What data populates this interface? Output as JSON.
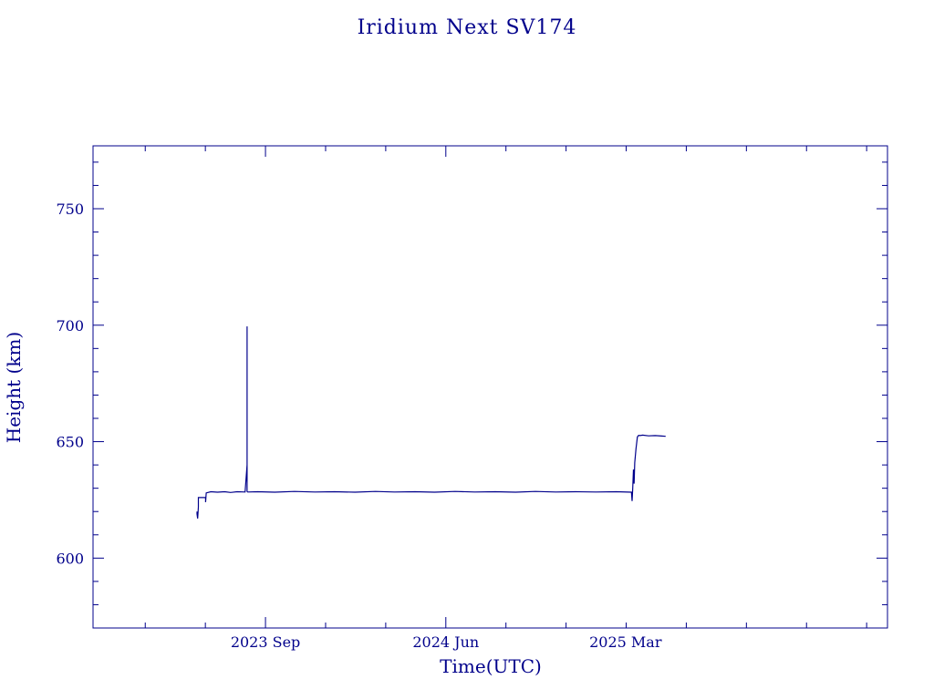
{
  "chart_data": {
    "type": "line",
    "title": "Iridium Next SV174",
    "xlabel": "Time(UTC)",
    "ylabel": "Height (km)",
    "ylim": [
      570,
      777
    ],
    "xlim": [
      "2022-12-13",
      "2026-04-03"
    ],
    "grid": false,
    "color": "#00008b",
    "y_ticks": [
      600,
      650,
      700,
      750
    ],
    "y_tick_labels": [
      "600",
      "650",
      "700",
      "750"
    ],
    "x_ticks": [
      "2023-09-01",
      "2024-06-01",
      "2025-03-01"
    ],
    "x_tick_labels": [
      "2023 Sep",
      "2024 Jun",
      "2025 Mar"
    ],
    "series": [
      {
        "x": [
          "2023-05-20",
          "2023-05-20",
          "2023-05-21",
          "2023-05-22",
          "2023-05-22",
          "2023-05-26",
          "2023-05-31",
          "2023-06-02",
          "2023-06-02",
          "2023-06-03",
          "2023-06-10",
          "2023-06-20",
          "2023-07-01",
          "2023-07-10",
          "2023-07-20",
          "2023-08-01",
          "2023-08-04",
          "2023-08-04",
          "2023-08-04",
          "2023-08-05",
          "2023-08-20",
          "2023-09-15",
          "2023-10-15",
          "2023-11-15",
          "2023-12-15",
          "2024-01-15",
          "2024-02-15",
          "2024-03-15",
          "2024-04-15",
          "2024-05-15",
          "2024-06-15",
          "2024-07-15",
          "2024-08-15",
          "2024-09-15",
          "2024-10-15",
          "2024-11-15",
          "2024-12-15",
          "2025-01-15",
          "2025-02-15",
          "2025-03-10",
          "2025-03-11",
          "2025-03-12",
          "2025-03-13",
          "2025-03-14",
          "2025-03-15",
          "2025-03-17",
          "2025-03-19",
          "2025-03-21",
          "2025-03-23",
          "2025-03-27",
          "2025-04-05",
          "2025-04-15",
          "2025-04-25",
          "2025-05-01"
        ],
        "y": [
          620,
          619,
          617,
          622,
          626,
          626,
          626,
          626,
          624,
          628,
          628.5,
          628.3,
          628.5,
          628.2,
          628.5,
          628.4,
          640,
          699.5,
          628.6,
          628.4,
          628.5,
          628.3,
          628.6,
          628.4,
          628.5,
          628.3,
          628.6,
          628.4,
          628.5,
          628.3,
          628.6,
          628.4,
          628.5,
          628.3,
          628.6,
          628.4,
          628.5,
          628.4,
          628.5,
          628.3,
          624.5,
          630,
          638,
          632,
          641,
          647,
          652,
          652.7,
          652.6,
          652.8,
          652.5,
          652.6,
          652.4,
          652.3
        ]
      }
    ]
  }
}
